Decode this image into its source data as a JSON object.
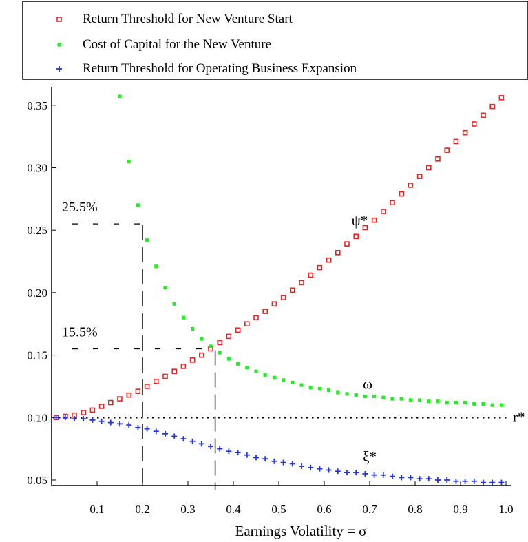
{
  "chart_data": {
    "type": "scatter",
    "title": "",
    "xlabel": "Earnings Volatility = σ",
    "ylabel": "",
    "xlim": [
      0.0,
      1.0
    ],
    "ylim": [
      0.045,
      0.36
    ],
    "x_ticks": [
      {
        "value": 0.1,
        "label": "0.1"
      },
      {
        "value": 0.2,
        "label": "0.2"
      },
      {
        "value": 0.3,
        "label": "0.3"
      },
      {
        "value": 0.4,
        "label": "0.4"
      },
      {
        "value": 0.5,
        "label": "0.5"
      },
      {
        "value": 0.6,
        "label": "0.6"
      },
      {
        "value": 0.7,
        "label": "0.7"
      },
      {
        "value": 0.8,
        "label": "0.8"
      },
      {
        "value": 0.9,
        "label": "0.9"
      },
      {
        "value": 1.0,
        "label": "1.0"
      }
    ],
    "y_ticks": [
      {
        "value": 0.05,
        "label": "0.05"
      },
      {
        "value": 0.1,
        "label": "0.10"
      },
      {
        "value": 0.15,
        "label": "0.15"
      },
      {
        "value": 0.2,
        "label": "0.20"
      },
      {
        "value": 0.25,
        "label": "0.25"
      },
      {
        "value": 0.3,
        "label": "0.30"
      },
      {
        "value": 0.35,
        "label": "0.35"
      }
    ],
    "grid": false,
    "legend_position": "top",
    "series": [
      {
        "name": "Return Threshold for New Venture Start",
        "marker": "square",
        "color": "#ee2222",
        "curve_label": "ψ*",
        "x": [
          0.01,
          0.03,
          0.05,
          0.07,
          0.09,
          0.11,
          0.13,
          0.15,
          0.17,
          0.19,
          0.21,
          0.23,
          0.25,
          0.27,
          0.29,
          0.31,
          0.33,
          0.35,
          0.37,
          0.39,
          0.41,
          0.43,
          0.45,
          0.47,
          0.49,
          0.51,
          0.53,
          0.55,
          0.57,
          0.59,
          0.61,
          0.63,
          0.65,
          0.67,
          0.69,
          0.71,
          0.73,
          0.75,
          0.77,
          0.79,
          0.81,
          0.83,
          0.85,
          0.87,
          0.89,
          0.91,
          0.93,
          0.95,
          0.97,
          0.99
        ],
        "y": [
          0.1,
          0.101,
          0.102,
          0.104,
          0.106,
          0.109,
          0.112,
          0.115,
          0.118,
          0.121,
          0.125,
          0.129,
          0.133,
          0.137,
          0.141,
          0.146,
          0.15,
          0.155,
          0.16,
          0.165,
          0.17,
          0.175,
          0.18,
          0.185,
          0.191,
          0.196,
          0.202,
          0.208,
          0.214,
          0.22,
          0.226,
          0.232,
          0.239,
          0.245,
          0.252,
          0.258,
          0.265,
          0.272,
          0.279,
          0.286,
          0.293,
          0.3,
          0.307,
          0.314,
          0.321,
          0.328,
          0.335,
          0.342,
          0.349,
          0.356
        ]
      },
      {
        "name": "Cost of Capital for the New Venture",
        "marker": "dot",
        "color": "#22ee22",
        "curve_label": "ω",
        "x": [
          0.15,
          0.17,
          0.19,
          0.21,
          0.23,
          0.25,
          0.27,
          0.29,
          0.31,
          0.33,
          0.35,
          0.37,
          0.39,
          0.41,
          0.43,
          0.45,
          0.47,
          0.49,
          0.51,
          0.53,
          0.55,
          0.57,
          0.59,
          0.61,
          0.63,
          0.65,
          0.67,
          0.69,
          0.71,
          0.73,
          0.75,
          0.77,
          0.79,
          0.81,
          0.83,
          0.85,
          0.87,
          0.89,
          0.91,
          0.93,
          0.95,
          0.97,
          0.99
        ],
        "y": [
          0.357,
          0.305,
          0.27,
          0.242,
          0.221,
          0.204,
          0.191,
          0.18,
          0.171,
          0.163,
          0.157,
          0.152,
          0.147,
          0.143,
          0.14,
          0.137,
          0.134,
          0.132,
          0.13,
          0.128,
          0.126,
          0.124,
          0.123,
          0.122,
          0.12,
          0.119,
          0.118,
          0.117,
          0.117,
          0.116,
          0.115,
          0.115,
          0.114,
          0.114,
          0.113,
          0.113,
          0.112,
          0.112,
          0.112,
          0.111,
          0.111,
          0.11,
          0.11
        ]
      },
      {
        "name": "Return Threshold for Operating Business Expansion",
        "marker": "plus",
        "color": "#2233ee",
        "curve_label": "ξ*",
        "x": [
          0.01,
          0.03,
          0.05,
          0.07,
          0.09,
          0.11,
          0.13,
          0.15,
          0.17,
          0.19,
          0.21,
          0.23,
          0.25,
          0.27,
          0.29,
          0.31,
          0.33,
          0.35,
          0.37,
          0.39,
          0.41,
          0.43,
          0.45,
          0.47,
          0.49,
          0.51,
          0.53,
          0.55,
          0.57,
          0.59,
          0.61,
          0.63,
          0.65,
          0.67,
          0.69,
          0.71,
          0.73,
          0.75,
          0.77,
          0.79,
          0.81,
          0.83,
          0.85,
          0.87,
          0.89,
          0.91,
          0.93,
          0.95,
          0.97,
          0.99
        ],
        "y": [
          0.1,
          0.1,
          0.099,
          0.099,
          0.098,
          0.097,
          0.096,
          0.095,
          0.094,
          0.092,
          0.091,
          0.089,
          0.087,
          0.085,
          0.083,
          0.081,
          0.079,
          0.077,
          0.075,
          0.073,
          0.072,
          0.07,
          0.068,
          0.067,
          0.065,
          0.064,
          0.063,
          0.061,
          0.06,
          0.059,
          0.058,
          0.057,
          0.056,
          0.056,
          0.055,
          0.054,
          0.054,
          0.053,
          0.052,
          0.052,
          0.051,
          0.051,
          0.05,
          0.05,
          0.049,
          0.049,
          0.049,
          0.048,
          0.048,
          0.048
        ]
      }
    ],
    "reference_line": {
      "label": "r*",
      "y": 0.1,
      "style": "dotted",
      "color": "#000000"
    },
    "annotations": [
      {
        "label": "25.5%",
        "x": 0.2,
        "y": 0.255
      },
      {
        "label": "15.5%",
        "x": 0.36,
        "y": 0.155
      }
    ]
  }
}
